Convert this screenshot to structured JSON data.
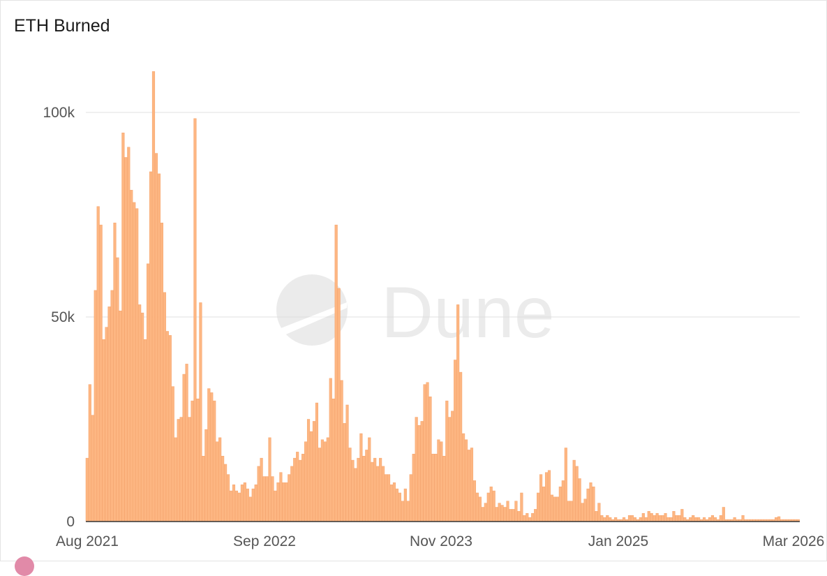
{
  "chart_data": {
    "type": "bar",
    "title": "ETH Burned",
    "xlabel": "",
    "ylabel": "",
    "ylim": [
      0,
      110000
    ],
    "y_ticks": [
      0,
      50000,
      100000
    ],
    "y_tick_labels": [
      "0",
      "50k",
      "100k"
    ],
    "x_tick_labels": [
      "Aug 2021",
      "Sep 2022",
      "Nov 2023",
      "Jan 2025",
      "Mar 2026"
    ],
    "x_range": [
      "2021-08-01",
      "2026-03-01"
    ],
    "grid": true,
    "bar_color": "#fdb682",
    "bar_edge_color": "#f5a36b",
    "watermark": "Dune",
    "series": [
      {
        "values": [
          15500,
          33500,
          26000,
          56500,
          77000,
          72500,
          44500,
          47500,
          52500,
          56500,
          73000,
          64500,
          51500,
          95000,
          89000,
          91500,
          81000,
          78000,
          76500,
          53000,
          51000,
          44500,
          63000,
          85500,
          110000,
          90000,
          85000,
          73000,
          56000,
          46500,
          45500,
          33000,
          20500,
          25000,
          25500,
          36000,
          38500,
          25500,
          29500,
          98500,
          30000,
          53500,
          16000,
          22500,
          32500,
          31500,
          29500,
          19500,
          20500,
          16000,
          14000,
          11500,
          7500,
          9000,
          7500,
          7000,
          9000,
          9500,
          8000,
          6000,
          8000,
          9000,
          13500,
          15500,
          11000,
          11000,
          20500,
          11000,
          7500,
          9500,
          12000,
          9500,
          9500,
          11500,
          13500,
          15500,
          17000,
          15000,
          16500,
          19500,
          25000,
          22000,
          24500,
          29000,
          18000,
          20000,
          19500,
          20500,
          35000,
          30000,
          72500,
          57000,
          34500,
          24000,
          28500,
          18000,
          15000,
          13000,
          15500,
          21500,
          16000,
          17500,
          20500,
          14500,
          15500,
          13500,
          15500,
          13500,
          11500,
          11500,
          9000,
          9500,
          8000,
          7000,
          5000,
          8000,
          5000,
          11500,
          16500,
          25500,
          23500,
          24500,
          33500,
          34000,
          30500,
          16500,
          16500,
          20000,
          19500,
          16000,
          29500,
          25500,
          27000,
          39500,
          53000,
          36500,
          21500,
          20000,
          17500,
          18000,
          10000,
          7000,
          6000,
          3500,
          4500,
          7000,
          8500,
          7500,
          3500,
          4500,
          4000,
          3500,
          5000,
          3000,
          3000,
          5000,
          2500,
          7000,
          1500,
          2000,
          1000,
          2000,
          3000,
          7000,
          11500,
          8500,
          12000,
          12500,
          6500,
          6000,
          6000,
          8500,
          10000,
          18000,
          5000,
          5000,
          15000,
          13500,
          10500,
          4500,
          5500,
          8000,
          9500,
          8500,
          2500,
          4500,
          1500,
          1000,
          1500,
          1000,
          500,
          1000,
          500,
          500,
          1000,
          500,
          1500,
          1500,
          1000,
          500,
          1000,
          2000,
          1000,
          2500,
          2000,
          1500,
          2000,
          1500,
          1500,
          2000,
          1000,
          1000,
          2500,
          1500,
          1500,
          3000,
          1000,
          500,
          1000,
          1500,
          1000,
          1000,
          500,
          1000,
          500,
          1000,
          1500,
          1000,
          500,
          1500,
          3500,
          500,
          500,
          500,
          1000,
          500,
          500,
          1500,
          500,
          500,
          500,
          500,
          500,
          500,
          500,
          500,
          500,
          500,
          500,
          1000,
          1200,
          500,
          500,
          500,
          500,
          500,
          500,
          500
        ]
      }
    ]
  },
  "legend": {
    "dot_color": "#e18aa8"
  }
}
